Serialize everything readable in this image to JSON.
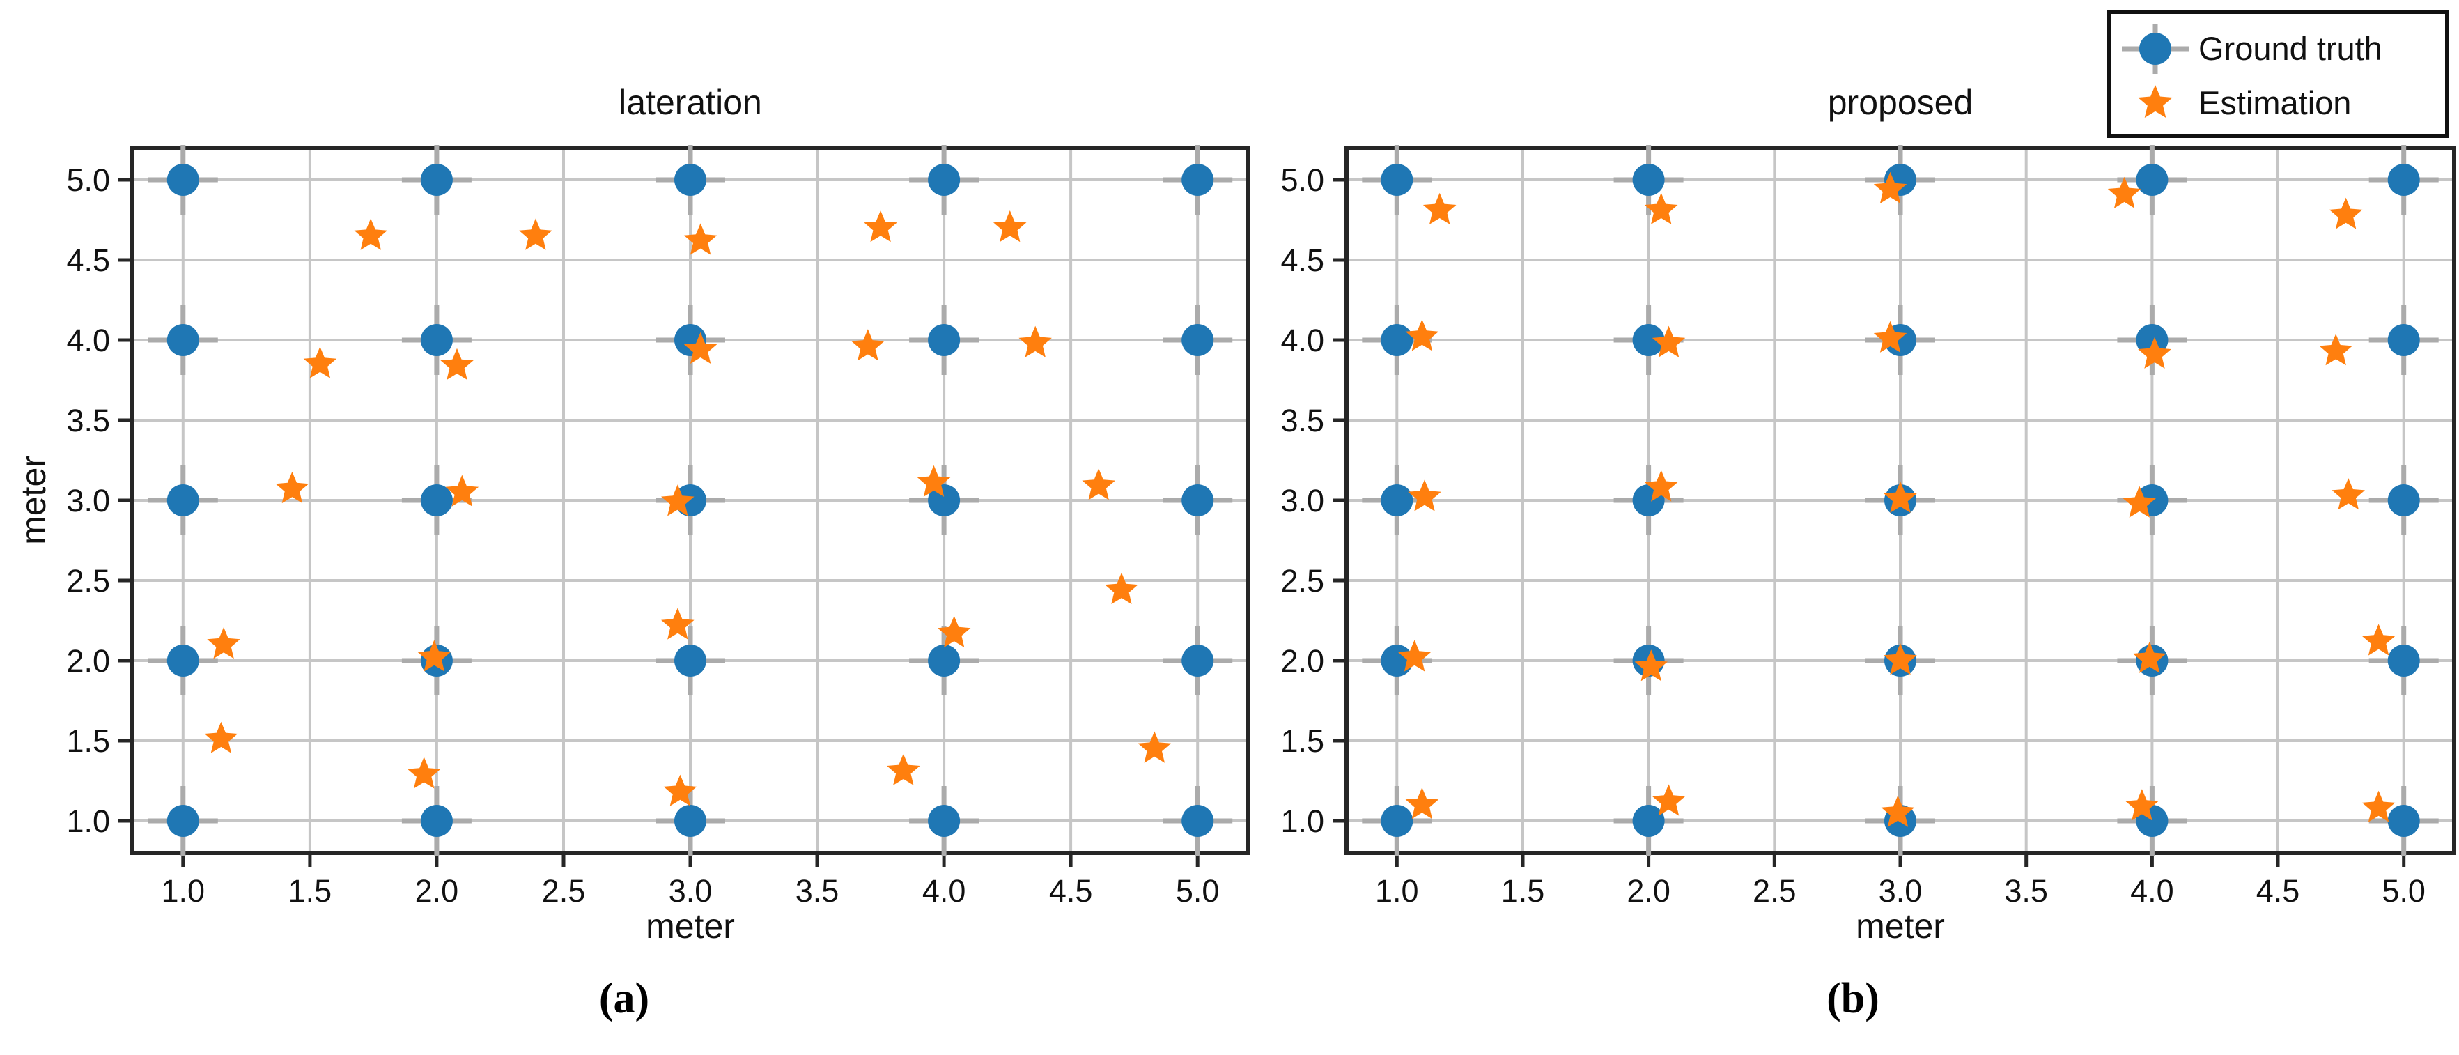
{
  "legend": {
    "items": [
      {
        "label": "Ground truth",
        "marker": "circle-crosshair"
      },
      {
        "label": "Estimation",
        "marker": "star"
      }
    ]
  },
  "colors": {
    "ground_truth": "#1f77b4",
    "estimation": "#ff7f0e",
    "crosshair": "#ababab",
    "grid": "#c6c6c6",
    "frame": "#262626",
    "tick": "#262626",
    "text": "#111111",
    "background": "#ffffff"
  },
  "chart_data": [
    {
      "type": "scatter",
      "title": "lateration",
      "caption": "(a)",
      "xlabel": "meter",
      "ylabel": "meter",
      "xlim": [
        0.8,
        5.2
      ],
      "ylim": [
        0.8,
        5.2
      ],
      "xticks": [
        1.0,
        1.5,
        2.0,
        2.5,
        3.0,
        3.5,
        4.0,
        4.5,
        5.0
      ],
      "yticks": [
        1.0,
        1.5,
        2.0,
        2.5,
        3.0,
        3.5,
        4.0,
        4.5,
        5.0
      ],
      "grid": true,
      "series": [
        {
          "name": "Ground truth",
          "marker": "circle-crosshair",
          "color": "#1f77b4",
          "points": [
            [
              1,
              1
            ],
            [
              1,
              2
            ],
            [
              1,
              3
            ],
            [
              1,
              4
            ],
            [
              1,
              5
            ],
            [
              2,
              1
            ],
            [
              2,
              2
            ],
            [
              2,
              3
            ],
            [
              2,
              4
            ],
            [
              2,
              5
            ],
            [
              3,
              1
            ],
            [
              3,
              2
            ],
            [
              3,
              3
            ],
            [
              3,
              4
            ],
            [
              3,
              5
            ],
            [
              4,
              1
            ],
            [
              4,
              2
            ],
            [
              4,
              3
            ],
            [
              4,
              4
            ],
            [
              4,
              5
            ],
            [
              5,
              1
            ],
            [
              5,
              2
            ],
            [
              5,
              3
            ],
            [
              5,
              4
            ],
            [
              5,
              5
            ]
          ]
        },
        {
          "name": "Estimation",
          "marker": "star",
          "color": "#ff7f0e",
          "points": [
            [
              1.15,
              1.51
            ],
            [
              1.16,
              2.1
            ],
            [
              1.43,
              3.07
            ],
            [
              1.54,
              3.85
            ],
            [
              1.74,
              4.65
            ],
            [
              1.95,
              1.29
            ],
            [
              1.99,
              2.02
            ],
            [
              2.1,
              3.05
            ],
            [
              2.08,
              3.84
            ],
            [
              2.39,
              4.65
            ],
            [
              2.96,
              1.18
            ],
            [
              2.95,
              2.22
            ],
            [
              2.95,
              2.99
            ],
            [
              3.04,
              3.94
            ],
            [
              3.04,
              4.62
            ],
            [
              3.84,
              1.31
            ],
            [
              4.04,
              2.17
            ],
            [
              3.96,
              3.11
            ],
            [
              3.7,
              3.96
            ],
            [
              3.75,
              4.7
            ],
            [
              4.83,
              1.45
            ],
            [
              4.7,
              2.44
            ],
            [
              4.61,
              3.09
            ],
            [
              4.36,
              3.98
            ],
            [
              4.26,
              4.7
            ]
          ]
        }
      ]
    },
    {
      "type": "scatter",
      "title": "proposed",
      "caption": "(b)",
      "xlabel": "meter",
      "ylabel": "",
      "xlim": [
        0.8,
        5.2
      ],
      "ylim": [
        0.8,
        5.2
      ],
      "xticks": [
        1.0,
        1.5,
        2.0,
        2.5,
        3.0,
        3.5,
        4.0,
        4.5,
        5.0
      ],
      "yticks": [
        1.0,
        1.5,
        2.0,
        2.5,
        3.0,
        3.5,
        4.0,
        4.5,
        5.0
      ],
      "grid": true,
      "series": [
        {
          "name": "Ground truth",
          "marker": "circle-crosshair",
          "color": "#1f77b4",
          "points": [
            [
              1,
              1
            ],
            [
              1,
              2
            ],
            [
              1,
              3
            ],
            [
              1,
              4
            ],
            [
              1,
              5
            ],
            [
              2,
              1
            ],
            [
              2,
              2
            ],
            [
              2,
              3
            ],
            [
              2,
              4
            ],
            [
              2,
              5
            ],
            [
              3,
              1
            ],
            [
              3,
              2
            ],
            [
              3,
              3
            ],
            [
              3,
              4
            ],
            [
              3,
              5
            ],
            [
              4,
              1
            ],
            [
              4,
              2
            ],
            [
              4,
              3
            ],
            [
              4,
              4
            ],
            [
              4,
              5
            ],
            [
              5,
              1
            ],
            [
              5,
              2
            ],
            [
              5,
              3
            ],
            [
              5,
              4
            ],
            [
              5,
              5
            ]
          ]
        },
        {
          "name": "Estimation",
          "marker": "star",
          "color": "#ff7f0e",
          "points": [
            [
              1.1,
              1.1
            ],
            [
              1.07,
              2.02
            ],
            [
              1.11,
              3.02
            ],
            [
              1.1,
              4.02
            ],
            [
              1.17,
              4.81
            ],
            [
              2.08,
              1.12
            ],
            [
              2.01,
              1.96
            ],
            [
              2.05,
              3.08
            ],
            [
              2.08,
              3.98
            ],
            [
              2.05,
              4.81
            ],
            [
              2.99,
              1.05
            ],
            [
              3.0,
              2.0
            ],
            [
              3.0,
              3.01
            ],
            [
              2.96,
              4.01
            ],
            [
              2.96,
              4.94
            ],
            [
              3.96,
              1.09
            ],
            [
              3.99,
              2.01
            ],
            [
              3.95,
              2.98
            ],
            [
              4.01,
              3.91
            ],
            [
              3.89,
              4.91
            ],
            [
              4.9,
              1.08
            ],
            [
              4.9,
              2.12
            ],
            [
              4.78,
              3.03
            ],
            [
              4.73,
              3.93
            ],
            [
              4.77,
              4.78
            ]
          ]
        }
      ]
    }
  ]
}
